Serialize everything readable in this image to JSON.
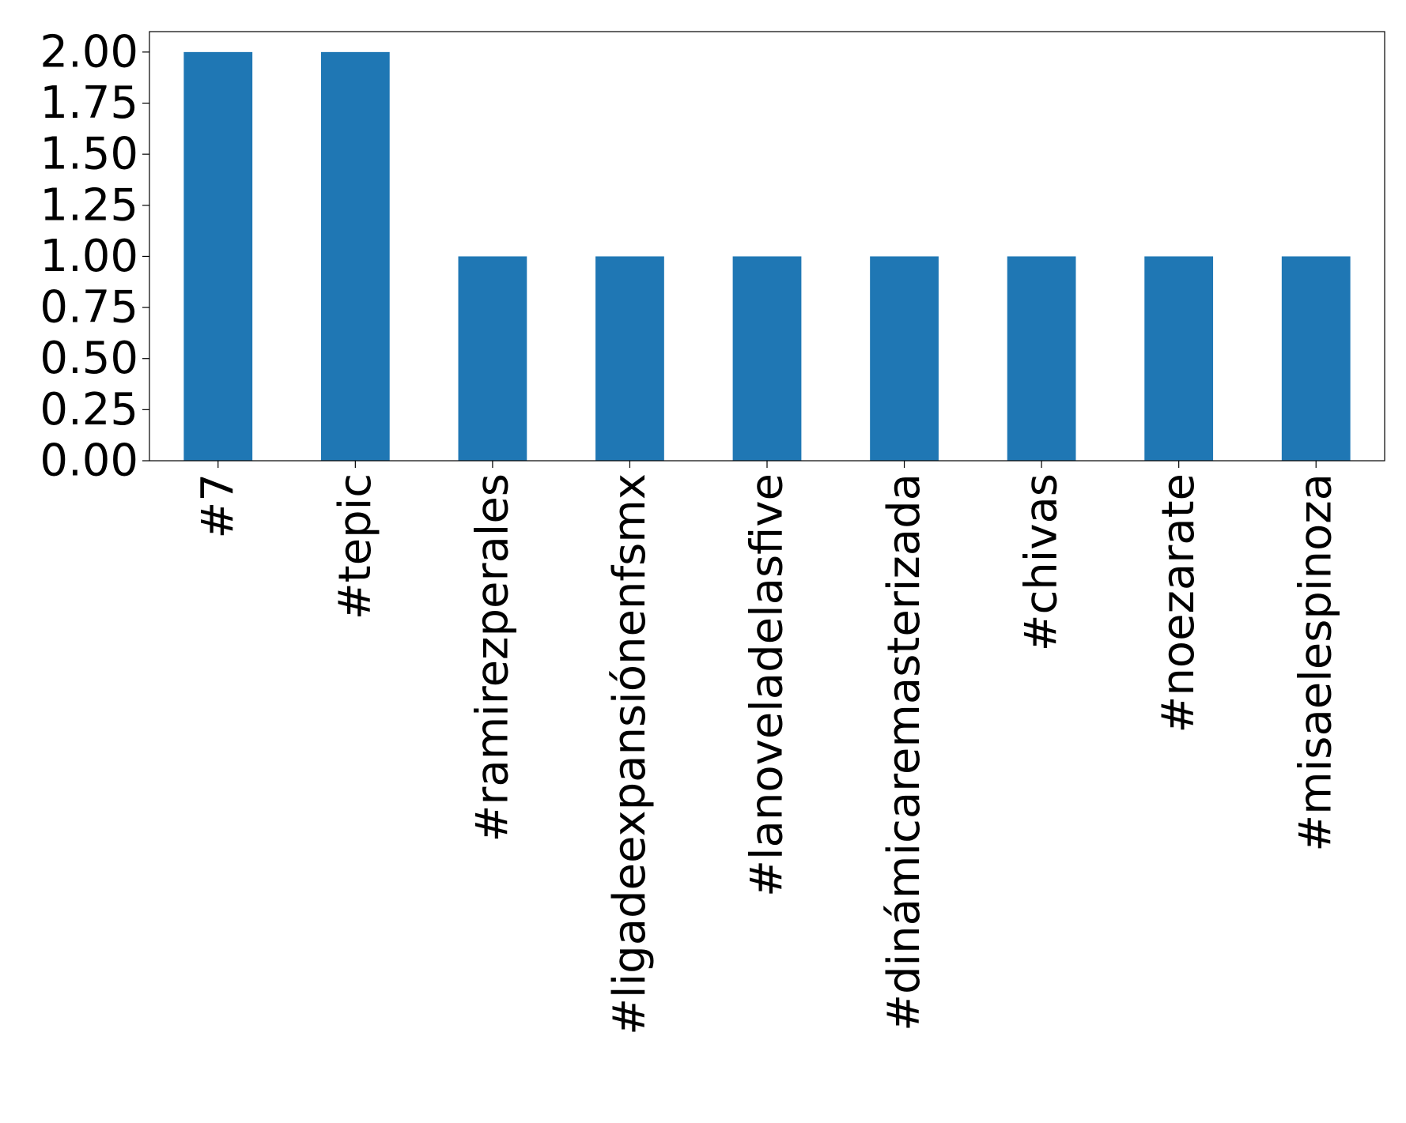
{
  "chart_data": {
    "type": "bar",
    "categories": [
      "#7",
      "#tepic",
      "#ramirezperales",
      "#ligadeexpansiónenfsmx",
      "#lanoveladelasfive",
      "#dinámicaremasterizada",
      "#chivas",
      "#noezarate",
      "#misaelespinoza"
    ],
    "values": [
      2,
      2,
      1,
      1,
      1,
      1,
      1,
      1,
      1
    ],
    "ylim": [
      0,
      2.1
    ],
    "yticks": [
      0,
      0.25,
      0.5,
      0.75,
      1.0,
      1.25,
      1.5,
      1.75,
      2.0
    ],
    "ytick_labels": [
      "0.00",
      "0.25",
      "0.50",
      "0.75",
      "1.00",
      "1.25",
      "1.50",
      "1.75",
      "2.00"
    ],
    "title": "",
    "xlabel": "",
    "ylabel": "",
    "grid": false,
    "legend": "none",
    "colors": {
      "bar": "#1f77b4",
      "axes": "#000000",
      "background": "#ffffff"
    }
  }
}
